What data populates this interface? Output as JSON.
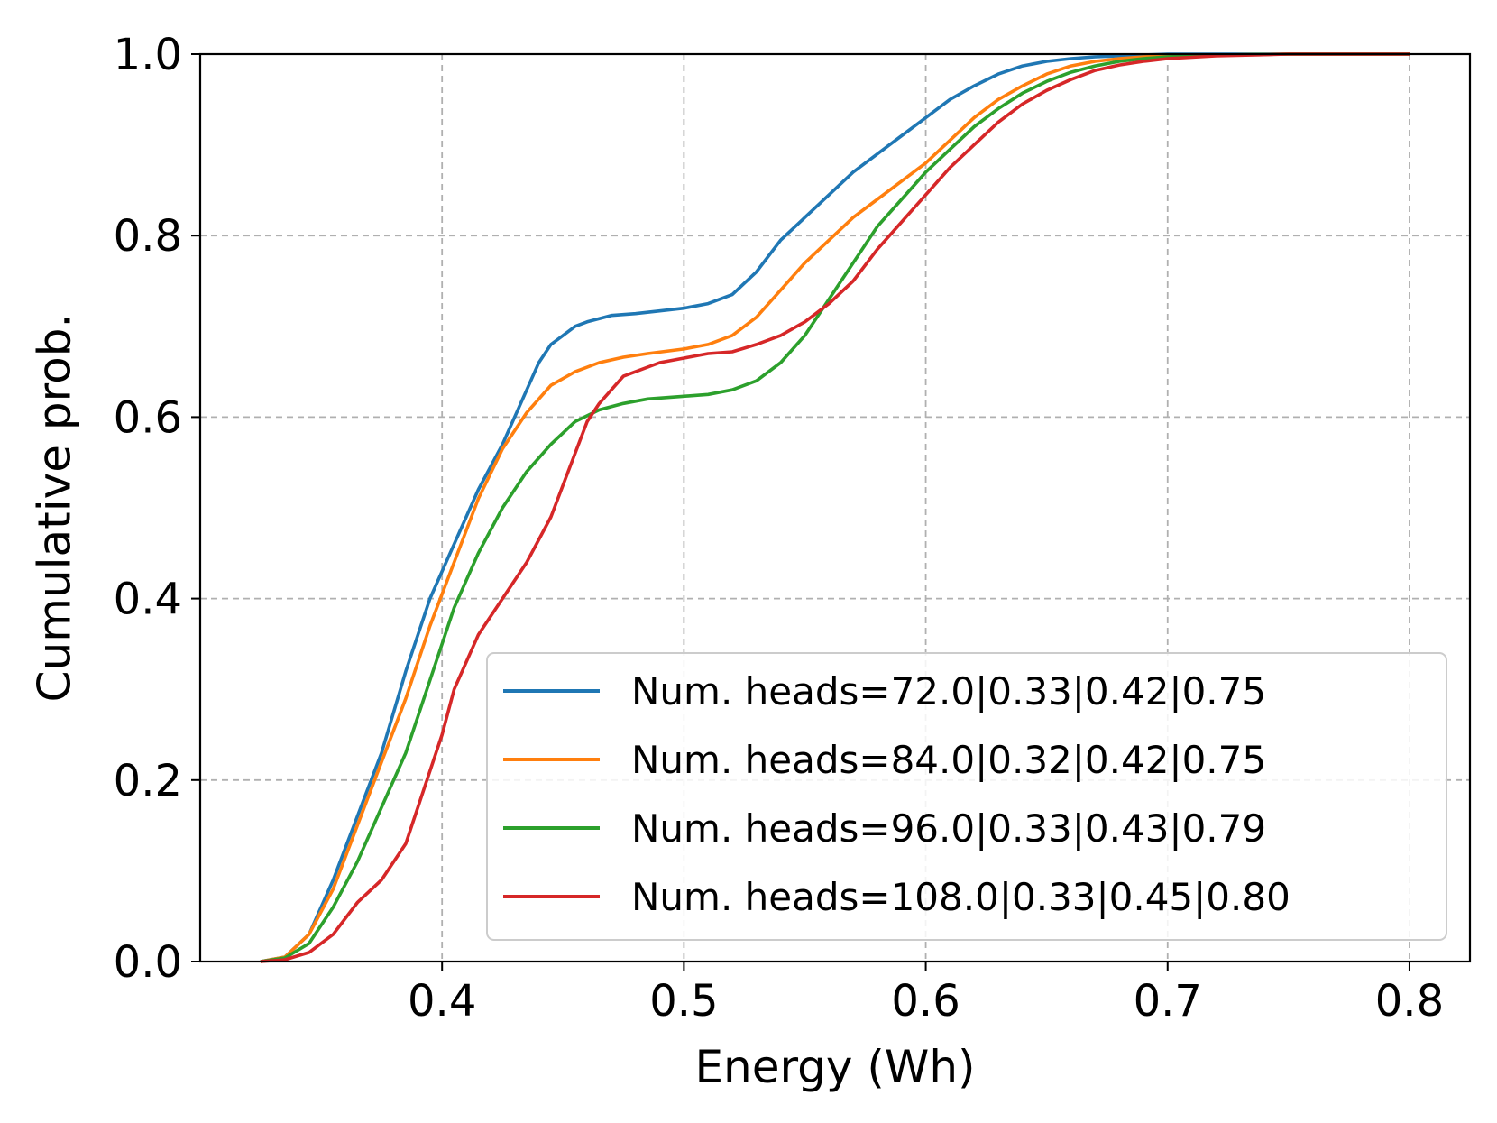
{
  "chart_data": {
    "type": "line",
    "title": "",
    "xlabel": "Energy (Wh)",
    "ylabel": "Cumulative prob.",
    "xlim": [
      0.3,
      0.825
    ],
    "ylim": [
      0.0,
      1.0
    ],
    "xticks": [
      0.4,
      0.5,
      0.6,
      0.7,
      0.8
    ],
    "xtick_labels": [
      "0.4",
      "0.5",
      "0.6",
      "0.7",
      "0.8"
    ],
    "yticks": [
      0.0,
      0.2,
      0.4,
      0.6,
      0.8,
      1.0
    ],
    "ytick_labels": [
      "0.0",
      "0.2",
      "0.4",
      "0.6",
      "0.8",
      "1.0"
    ],
    "grid": true,
    "legend_position": "lower-right",
    "series": [
      {
        "name": "Num. heads=72.0|0.33|0.42|0.75",
        "color": "#1f77b4",
        "x": [
          0.325,
          0.335,
          0.345,
          0.355,
          0.365,
          0.375,
          0.385,
          0.395,
          0.405,
          0.415,
          0.425,
          0.435,
          0.44,
          0.445,
          0.45,
          0.455,
          0.46,
          0.47,
          0.48,
          0.49,
          0.5,
          0.51,
          0.52,
          0.53,
          0.54,
          0.55,
          0.56,
          0.57,
          0.58,
          0.59,
          0.6,
          0.61,
          0.62,
          0.63,
          0.64,
          0.65,
          0.66,
          0.67,
          0.68,
          0.69,
          0.7,
          0.75,
          0.8
        ],
        "y": [
          0.0,
          0.005,
          0.03,
          0.09,
          0.16,
          0.23,
          0.32,
          0.4,
          0.46,
          0.52,
          0.57,
          0.63,
          0.66,
          0.68,
          0.69,
          0.7,
          0.705,
          0.712,
          0.714,
          0.717,
          0.72,
          0.725,
          0.735,
          0.76,
          0.795,
          0.82,
          0.845,
          0.87,
          0.89,
          0.91,
          0.93,
          0.95,
          0.965,
          0.978,
          0.987,
          0.992,
          0.995,
          0.997,
          0.998,
          0.999,
          1.0,
          1.0,
          1.0
        ]
      },
      {
        "name": "Num. heads=84.0|0.32|0.42|0.75",
        "color": "#ff7f0e",
        "x": [
          0.325,
          0.335,
          0.345,
          0.355,
          0.365,
          0.375,
          0.385,
          0.395,
          0.405,
          0.415,
          0.425,
          0.435,
          0.445,
          0.455,
          0.465,
          0.475,
          0.485,
          0.5,
          0.51,
          0.52,
          0.53,
          0.54,
          0.55,
          0.56,
          0.57,
          0.58,
          0.59,
          0.6,
          0.61,
          0.62,
          0.63,
          0.64,
          0.65,
          0.66,
          0.67,
          0.68,
          0.69,
          0.7,
          0.72,
          0.75,
          0.8
        ],
        "y": [
          0.0,
          0.005,
          0.03,
          0.08,
          0.15,
          0.22,
          0.29,
          0.37,
          0.44,
          0.51,
          0.565,
          0.605,
          0.635,
          0.65,
          0.66,
          0.666,
          0.67,
          0.675,
          0.68,
          0.69,
          0.71,
          0.74,
          0.77,
          0.795,
          0.82,
          0.84,
          0.86,
          0.88,
          0.905,
          0.93,
          0.95,
          0.965,
          0.978,
          0.987,
          0.992,
          0.995,
          0.997,
          0.998,
          0.999,
          1.0,
          1.0
        ]
      },
      {
        "name": "Num. heads=96.0|0.33|0.43|0.79",
        "color": "#2ca02c",
        "x": [
          0.325,
          0.335,
          0.345,
          0.355,
          0.365,
          0.375,
          0.385,
          0.395,
          0.405,
          0.415,
          0.425,
          0.435,
          0.445,
          0.455,
          0.465,
          0.475,
          0.485,
          0.5,
          0.51,
          0.52,
          0.53,
          0.54,
          0.55,
          0.56,
          0.57,
          0.58,
          0.59,
          0.6,
          0.61,
          0.62,
          0.63,
          0.64,
          0.65,
          0.66,
          0.67,
          0.68,
          0.69,
          0.7,
          0.72,
          0.75,
          0.8
        ],
        "y": [
          0.0,
          0.004,
          0.02,
          0.06,
          0.11,
          0.17,
          0.23,
          0.31,
          0.39,
          0.45,
          0.5,
          0.54,
          0.57,
          0.595,
          0.608,
          0.615,
          0.62,
          0.623,
          0.625,
          0.63,
          0.64,
          0.66,
          0.69,
          0.73,
          0.77,
          0.81,
          0.84,
          0.87,
          0.895,
          0.92,
          0.94,
          0.957,
          0.97,
          0.98,
          0.987,
          0.992,
          0.995,
          0.997,
          0.999,
          1.0,
          1.0
        ]
      },
      {
        "name": "Num. heads=108.0|0.33|0.45|0.80",
        "color": "#d62728",
        "x": [
          0.325,
          0.335,
          0.345,
          0.355,
          0.365,
          0.375,
          0.385,
          0.395,
          0.4,
          0.405,
          0.415,
          0.425,
          0.435,
          0.445,
          0.455,
          0.46,
          0.465,
          0.47,
          0.475,
          0.48,
          0.49,
          0.5,
          0.51,
          0.52,
          0.53,
          0.54,
          0.55,
          0.56,
          0.57,
          0.58,
          0.59,
          0.6,
          0.61,
          0.62,
          0.63,
          0.64,
          0.65,
          0.66,
          0.67,
          0.68,
          0.69,
          0.7,
          0.72,
          0.75,
          0.8
        ],
        "y": [
          0.0,
          0.002,
          0.01,
          0.03,
          0.065,
          0.09,
          0.13,
          0.21,
          0.25,
          0.3,
          0.36,
          0.4,
          0.44,
          0.49,
          0.56,
          0.595,
          0.615,
          0.63,
          0.645,
          0.65,
          0.66,
          0.665,
          0.67,
          0.672,
          0.68,
          0.69,
          0.705,
          0.725,
          0.75,
          0.785,
          0.815,
          0.845,
          0.875,
          0.9,
          0.925,
          0.945,
          0.96,
          0.972,
          0.982,
          0.988,
          0.992,
          0.995,
          0.998,
          1.0,
          1.0
        ]
      }
    ]
  }
}
